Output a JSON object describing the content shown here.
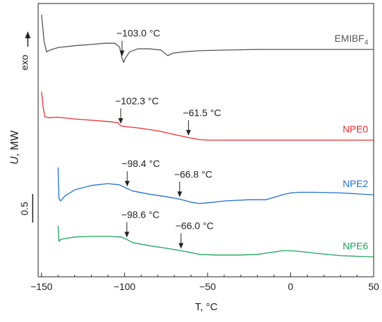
{
  "chart_data": {
    "type": "line",
    "xlabel": "T, °C",
    "ylabel": "U, MW",
    "exo_label": "exo",
    "scale_bar_label": "0.5",
    "xlim": [
      -152,
      50
    ],
    "xticks": [
      -150,
      -100,
      -50,
      0,
      50
    ],
    "xtick_labels": [
      "−150",
      "−100",
      "−50",
      "0",
      "50"
    ],
    "grid": false,
    "legend": "inline labels at right end of each curve",
    "series": [
      {
        "name": "EMIBF4",
        "color": "#555555",
        "label_main": "EMIBF",
        "label_sub": "4",
        "points": [
          [
            -150,
            4.22
          ],
          [
            -148.5,
            3.8
          ],
          [
            -147,
            3.62
          ],
          [
            -145,
            3.65
          ],
          [
            -140,
            3.69
          ],
          [
            -130,
            3.72
          ],
          [
            -120,
            3.74
          ],
          [
            -112,
            3.76
          ],
          [
            -106,
            3.76
          ],
          [
            -103,
            3.7
          ],
          [
            -101.5,
            3.52
          ],
          [
            -100.5,
            3.45
          ],
          [
            -99.5,
            3.52
          ],
          [
            -97,
            3.62
          ],
          [
            -92,
            3.67
          ],
          [
            -85,
            3.67
          ],
          [
            -78,
            3.65
          ],
          [
            -74,
            3.56
          ],
          [
            -71,
            3.6
          ],
          [
            -65,
            3.62
          ],
          [
            -55,
            3.64
          ],
          [
            -40,
            3.65
          ],
          [
            -20,
            3.66
          ],
          [
            0,
            3.66
          ],
          [
            20,
            3.66
          ],
          [
            50,
            3.66
          ]
        ]
      },
      {
        "name": "NPE0",
        "color": "#ee2c2c",
        "label_main": "NPE0",
        "points": [
          [
            -150,
            2.98
          ],
          [
            -149,
            2.72
          ],
          [
            -148,
            2.58
          ],
          [
            -146,
            2.56
          ],
          [
            -140,
            2.57
          ],
          [
            -130,
            2.54
          ],
          [
            -120,
            2.52
          ],
          [
            -110,
            2.5
          ],
          [
            -104,
            2.48
          ],
          [
            -102.3,
            2.43
          ],
          [
            -100,
            2.42
          ],
          [
            -90,
            2.39
          ],
          [
            -80,
            2.35
          ],
          [
            -70,
            2.29
          ],
          [
            -61.5,
            2.24
          ],
          [
            -55,
            2.21
          ],
          [
            -50,
            2.2
          ],
          [
            -30,
            2.2
          ],
          [
            0,
            2.2
          ],
          [
            30,
            2.2
          ],
          [
            50,
            2.2
          ]
        ]
      },
      {
        "name": "NPE2",
        "color": "#1f6fd1",
        "label_main": "NPE2",
        "points": [
          [
            -140,
            1.76
          ],
          [
            -139.5,
            1.26
          ],
          [
            -138.5,
            1.22
          ],
          [
            -136,
            1.3
          ],
          [
            -130,
            1.4
          ],
          [
            -120,
            1.47
          ],
          [
            -110,
            1.5
          ],
          [
            -103,
            1.48
          ],
          [
            -98.4,
            1.42
          ],
          [
            -95,
            1.38
          ],
          [
            -85,
            1.33
          ],
          [
            -75,
            1.29
          ],
          [
            -66.8,
            1.25
          ],
          [
            -60,
            1.2
          ],
          [
            -55,
            1.18
          ],
          [
            -50,
            1.19
          ],
          [
            -40,
            1.22
          ],
          [
            -25,
            1.24
          ],
          [
            -15,
            1.24
          ],
          [
            -10,
            1.28
          ],
          [
            -5,
            1.32
          ],
          [
            0,
            1.35
          ],
          [
            5,
            1.36
          ],
          [
            15,
            1.36
          ],
          [
            30,
            1.35
          ],
          [
            50,
            1.32
          ]
        ]
      },
      {
        "name": "NPE6",
        "color": "#1aa35c",
        "label_main": "NPE6",
        "points": [
          [
            -140,
            0.82
          ],
          [
            -139.5,
            0.57
          ],
          [
            -138.5,
            0.6
          ],
          [
            -135,
            0.62
          ],
          [
            -130,
            0.64
          ],
          [
            -120,
            0.65
          ],
          [
            -110,
            0.65
          ],
          [
            -102,
            0.64
          ],
          [
            -98.6,
            0.6
          ],
          [
            -95,
            0.55
          ],
          [
            -85,
            0.5
          ],
          [
            -75,
            0.46
          ],
          [
            -66,
            0.42
          ],
          [
            -60,
            0.39
          ],
          [
            -55,
            0.36
          ],
          [
            -45,
            0.35
          ],
          [
            -30,
            0.35
          ],
          [
            -20,
            0.36
          ],
          [
            -10,
            0.4
          ],
          [
            -5,
            0.42
          ],
          [
            0,
            0.42
          ],
          [
            5,
            0.41
          ],
          [
            15,
            0.38
          ],
          [
            30,
            0.34
          ],
          [
            50,
            0.32
          ]
        ]
      }
    ],
    "annotations": [
      {
        "text": "−103.0 °C",
        "x": -101.5,
        "series": "EMIBF4"
      },
      {
        "text": "−102.3 °C",
        "x": -102.3,
        "series": "NPE0"
      },
      {
        "text": "−61.5 °C",
        "x": -61.5,
        "series": "NPE0"
      },
      {
        "text": "−98.4 °C",
        "x": -98.4,
        "series": "NPE2"
      },
      {
        "text": "−66.8 °C",
        "x": -66.8,
        "series": "NPE2"
      },
      {
        "text": "−98.6 °C",
        "x": -98.6,
        "series": "NPE6"
      },
      {
        "text": "−66.0 °C",
        "x": -66.0,
        "series": "NPE6"
      }
    ]
  }
}
